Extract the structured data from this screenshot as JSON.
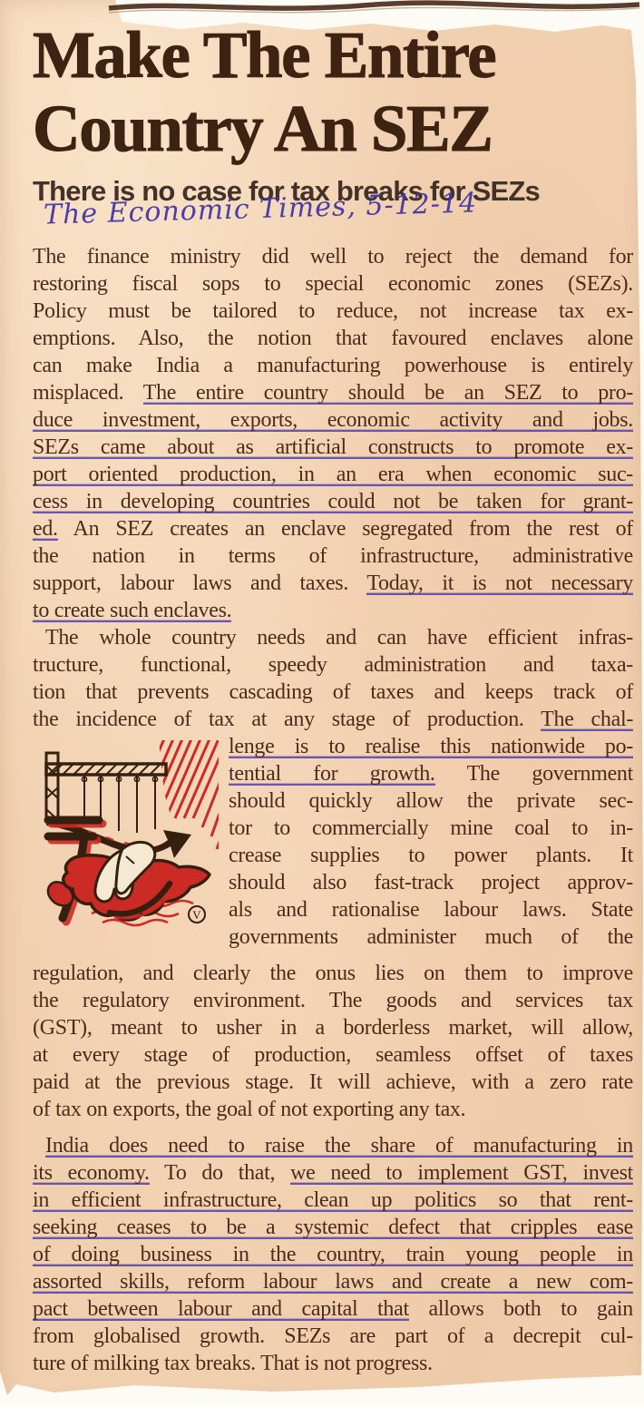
{
  "article": {
    "headline": [
      "Make The Entire",
      "Country An SEZ"
    ],
    "subtitle": "There is no case for tax breaks for SEZs",
    "handwritten_note": "The Economic Times, 5-12-14",
    "illustration": {
      "signature": "V"
    },
    "paragraphs": {
      "p1": [
        {
          "seg": [
            {
              "t": "The finance ministry did well to reject the demand for"
            }
          ]
        },
        {
          "seg": [
            {
              "t": "restoring fiscal sops to special economic zones (SEZs)."
            }
          ]
        },
        {
          "seg": [
            {
              "t": "Policy must be tailored to reduce, not increase tax ex-"
            }
          ]
        },
        {
          "seg": [
            {
              "t": "emptions. Also, the notion that favoured enclaves alone"
            }
          ]
        },
        {
          "seg": [
            {
              "t": "can make India a manufacturing powerhouse is entirely"
            }
          ]
        },
        {
          "seg": [
            {
              "t": "misplaced. "
            },
            {
              "t": "The entire country should be an SEZ to pro-",
              "u": true
            }
          ]
        },
        {
          "seg": [
            {
              "t": "duce investment, exports, economic activity and jobs.",
              "u": true
            }
          ]
        },
        {
          "seg": [
            {
              "t": "SEZs came about as artificial constructs to promote ex-",
              "u": true
            }
          ]
        },
        {
          "seg": [
            {
              "t": "port oriented production, in an era when economic suc-",
              "u": true
            }
          ]
        },
        {
          "seg": [
            {
              "t": "cess in developing countries could not be taken for grant-",
              "u": true
            }
          ]
        },
        {
          "seg": [
            {
              "t": "ed.",
              "u": true
            },
            {
              "t": " An SEZ creates an enclave segregated from the rest of"
            }
          ]
        },
        {
          "seg": [
            {
              "t": "the nation in terms of infrastructure, administrative"
            }
          ]
        },
        {
          "seg": [
            {
              "t": "support, labour laws and taxes. "
            },
            {
              "t": "Today, it is not necessary",
              "u": true
            }
          ]
        },
        {
          "seg": [
            {
              "t": "to create such enclaves.",
              "u": true
            }
          ],
          "last": true
        }
      ],
      "p2a": [
        {
          "seg": [
            {
              "t": "The whole country needs and can have efficient infras-"
            }
          ],
          "ind": true
        },
        {
          "seg": [
            {
              "t": "tructure, functional, speedy administration and taxa-"
            }
          ]
        },
        {
          "seg": [
            {
              "t": "tion that prevents cascading of taxes and keeps track of"
            }
          ]
        },
        {
          "seg": [
            {
              "t": "the incidence of tax at any stage of production. "
            },
            {
              "t": "The chal-",
              "u": true
            }
          ]
        }
      ],
      "p2b": [
        {
          "seg": [
            {
              "t": "lenge is to realise this nationwide po-",
              "u": true
            }
          ]
        },
        {
          "seg": [
            {
              "t": "tential for growth.",
              "u": true
            },
            {
              "t": " The government"
            }
          ]
        },
        {
          "seg": [
            {
              "t": "should quickly allow the private sec-"
            }
          ]
        },
        {
          "seg": [
            {
              "t": "tor to commercially mine coal to in-"
            }
          ]
        },
        {
          "seg": [
            {
              "t": "crease supplies to power plants. It"
            }
          ]
        },
        {
          "seg": [
            {
              "t": "should also fast-track project approv-"
            }
          ]
        },
        {
          "seg": [
            {
              "t": "als and rationalise labour laws. State"
            }
          ]
        },
        {
          "seg": [
            {
              "t": "governments administer much of the"
            }
          ]
        }
      ],
      "p2c": [
        {
          "seg": [
            {
              "t": "regulation, and clearly the onus lies on them to improve"
            }
          ]
        },
        {
          "seg": [
            {
              "t": "the regulatory environment. The goods and services tax"
            }
          ]
        },
        {
          "seg": [
            {
              "t": "(GST), meant to usher in a borderless market, will allow,"
            }
          ]
        },
        {
          "seg": [
            {
              "t": "at every stage of production, seamless offset of taxes"
            }
          ]
        },
        {
          "seg": [
            {
              "t": "paid at the previous stage. It will achieve, with a zero rate"
            }
          ]
        },
        {
          "seg": [
            {
              "t": "of tax on exports, the goal of not exporting any tax."
            }
          ],
          "last": true
        }
      ],
      "p3": [
        {
          "seg": [
            {
              "t": "India does need to raise the share of manufacturing in",
              "u": true
            }
          ],
          "ind": true
        },
        {
          "seg": [
            {
              "t": "its economy.",
              "u": true
            },
            {
              "t": " To do that, "
            },
            {
              "t": "we need to implement GST, invest",
              "u": true
            }
          ]
        },
        {
          "seg": [
            {
              "t": "in efficient infrastructure, clean up politics so that rent-",
              "u": true
            }
          ]
        },
        {
          "seg": [
            {
              "t": "seeking ceases to be a systemic defect that cripples ease",
              "u": true
            }
          ]
        },
        {
          "seg": [
            {
              "t": "of doing business in the country, train young people in",
              "u": true
            }
          ]
        },
        {
          "seg": [
            {
              "t": "assorted skills, reform labour laws and create a new com-",
              "u": true
            }
          ]
        },
        {
          "seg": [
            {
              "t": "pact between labour and capital that",
              "u": true
            },
            {
              "t": " allows both to gain"
            }
          ]
        },
        {
          "seg": [
            {
              "t": "from globalised growth. SEZs are part of a decrepit cul-"
            }
          ]
        },
        {
          "seg": [
            {
              "t": "ture of milking tax breaks. That is not progress."
            }
          ],
          "last": true
        }
      ]
    }
  },
  "colors": {
    "paper": "#f2d2b2",
    "headline_ink": "#3e2312",
    "body_ink": "#4e2a1b",
    "pen_ink": "#543fac",
    "illustration_red": "#cc2a24",
    "illustration_dark": "#35200f"
  }
}
